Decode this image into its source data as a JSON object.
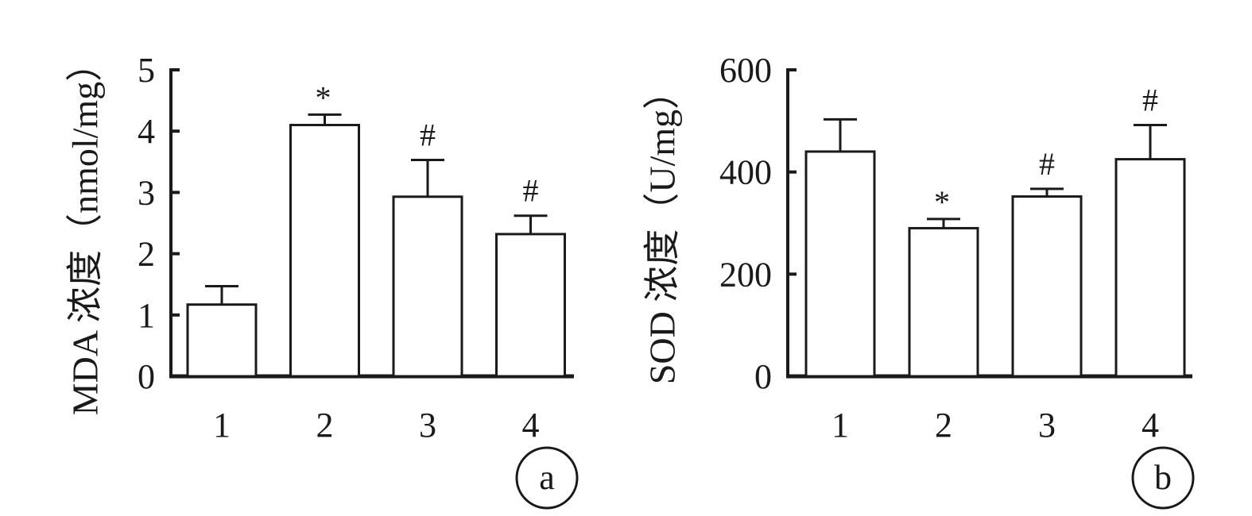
{
  "chart_data": [
    {
      "type": "bar",
      "categories": [
        "1",
        "2",
        "3",
        "4"
      ],
      "values": [
        1.17,
        4.1,
        2.93,
        2.32
      ],
      "errors": [
        0.3,
        0.17,
        0.6,
        0.3
      ],
      "markers": [
        "",
        "*",
        "#",
        "#"
      ],
      "ylabel": "MDA 浓度（nmol/mg）",
      "ylim": [
        0,
        5
      ],
      "yticks": [
        0,
        1,
        2,
        3,
        4,
        5
      ],
      "panel_label": "a",
      "grid": false
    },
    {
      "type": "bar",
      "categories": [
        "1",
        "2",
        "3",
        "4"
      ],
      "values": [
        440,
        290,
        352,
        425
      ],
      "errors": [
        63,
        18,
        15,
        67
      ],
      "markers": [
        "",
        "*",
        "#",
        "#"
      ],
      "ylabel": "SOD 浓度（U/mg）",
      "ylim": [
        0,
        600
      ],
      "yticks": [
        0,
        200,
        400,
        600
      ],
      "panel_label": "b",
      "grid": false
    }
  ],
  "colors": {
    "axis": "#1a1a1a",
    "bar_fill": "#ffffff",
    "bar_stroke": "#1a1a1a"
  }
}
